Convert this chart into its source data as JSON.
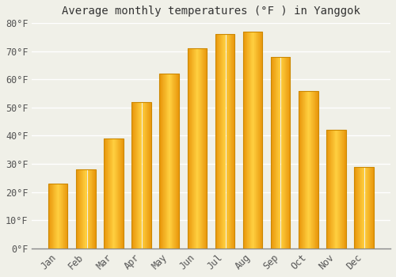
{
  "title": "Average monthly temperatures (°F ) in Yanggok",
  "months": [
    "Jan",
    "Feb",
    "Mar",
    "Apr",
    "May",
    "Jun",
    "Jul",
    "Aug",
    "Sep",
    "Oct",
    "Nov",
    "Dec"
  ],
  "values": [
    23,
    28,
    39,
    52,
    62,
    71,
    76,
    77,
    68,
    56,
    42,
    29
  ],
  "bar_color_center": "#FFA500",
  "bar_color_edge": "#F5A800",
  "bar_color_bright": "#FFD040",
  "ylim": [
    0,
    80
  ],
  "yticks": [
    0,
    10,
    20,
    30,
    40,
    50,
    60,
    70,
    80
  ],
  "ytick_labels": [
    "0°F",
    "10°F",
    "20°F",
    "30°F",
    "40°F",
    "50°F",
    "60°F",
    "70°F",
    "80°F"
  ],
  "background_color": "#f0f0e8",
  "grid_color": "#e8e8e8",
  "title_fontsize": 10,
  "tick_fontsize": 8.5,
  "bar_width": 0.7
}
